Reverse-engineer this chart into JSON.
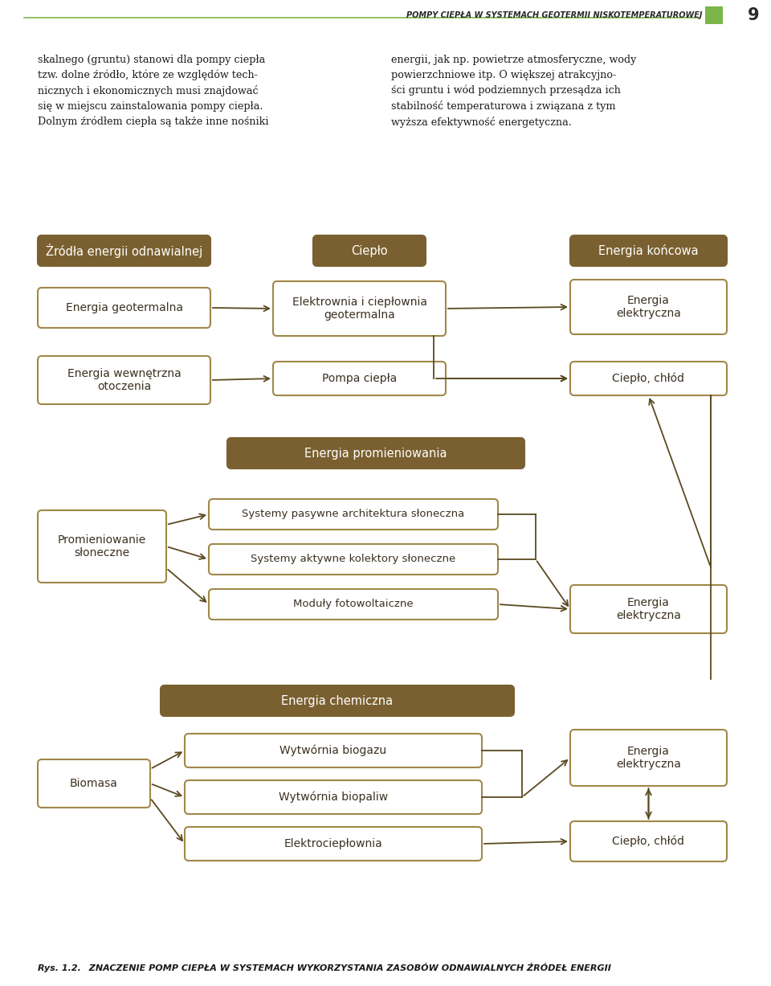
{
  "bg_color": "#ffffff",
  "header_line_color": "#7ab648",
  "header_square_color": "#7ab648",
  "header_text": "POMPY CIEPŁA W SYSTEMACH GEOTERMII NISKOTEMPERATUROWEJ",
  "page_number": "9",
  "intro_text_left": "skalnego (gruntu) stanowi dla pompy ciepła\ntzw. dolne źródło, które ze względów tech-\nnicznych i ekonomicznych musi znajdować\nsię w miejscu zainstalowania pompy ciepła.\nDolnym źródłem ciepła są także inne nośniki",
  "intro_text_right": "energii, jak np. powietrze atmosferyczne, wody\npowierzchniowe itp. O większej atrakcyjno-\nści gruntu i wód podziemnych przesądza ich\nstabilność temperaturowa i związana z tym\nwyższa efektywność energetyczna.",
  "brown_dark": "#7a6030",
  "brown_border": "#a08848",
  "caption_label": "Rys. 1.2.",
  "caption_rest": "  ZNACZENIE POMP CIEPŁA W SYSTEMACH WYKORZYSTANIA ZASOBÓW ODNAWIALNYCH ŹRÓDEŁ ENERGII"
}
